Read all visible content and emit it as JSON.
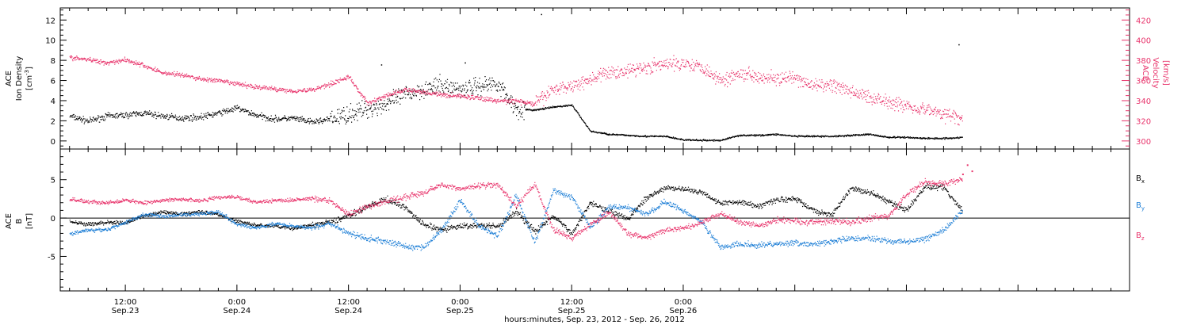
{
  "colors": {
    "black": "#000000",
    "pink": "#e8336b",
    "blue": "#1e7fd6"
  },
  "chart_data": [
    {
      "type": "scatter",
      "panel": "top",
      "left_axis": {
        "label_lines": [
          "ACE",
          "Ion Density"
        ],
        "unit": "[cm",
        "unit_sup": "-3",
        "unit_end": "]",
        "ylim": [
          -0.8,
          13.2
        ],
        "ticks": [
          0,
          2,
          4,
          6,
          8,
          10,
          12
        ]
      },
      "right_axis": {
        "label_lines": [
          "ACE",
          "Velocity"
        ],
        "unit": "[km/s]",
        "ylim": [
          292,
          432
        ],
        "ticks": [
          300,
          320,
          340,
          360,
          380,
          400,
          420
        ]
      },
      "series": [
        {
          "name": "Ion Density",
          "axis": "left",
          "color": "black",
          "x": [
            -6,
            -4,
            -2,
            0,
            2,
            4,
            6,
            8,
            10,
            12,
            14,
            16,
            18,
            20,
            22,
            24,
            26,
            28,
            30,
            32,
            34,
            36,
            38,
            40,
            42,
            44,
            46,
            48,
            50,
            52,
            54,
            56,
            58,
            60,
            62,
            64,
            66,
            68,
            70,
            72,
            74,
            76,
            78,
            80,
            82,
            84,
            86,
            88,
            90
          ],
          "y": [
            2.5,
            2.0,
            2.5,
            2.6,
            2.8,
            2.5,
            2.3,
            2.4,
            2.8,
            3.3,
            2.6,
            2.2,
            2.3,
            1.9,
            2.2,
            2.7,
            3.2,
            3.7,
            4.6,
            5.2,
            5.5,
            5.2,
            5.5,
            5.8,
            3.2,
            3.1,
            3.4,
            3.6,
            1.0,
            0.7,
            0.6,
            0.5,
            0.5,
            0.15,
            0.1,
            0.1,
            0.6,
            0.6,
            0.7,
            0.5,
            0.5,
            0.5,
            0.6,
            0.7,
            0.4,
            0.4,
            0.3,
            0.3,
            0.4
          ],
          "outliers": [
            [
              27.5,
              7.6
            ],
            [
              36.5,
              7.8
            ],
            [
              44.7,
              12.6
            ],
            [
              89.6,
              9.6
            ]
          ]
        },
        {
          "name": "Velocity",
          "axis": "right",
          "color": "pink",
          "x": [
            -6,
            -4,
            -2,
            0,
            2,
            4,
            6,
            8,
            10,
            12,
            14,
            16,
            18,
            20,
            22,
            24,
            26,
            28,
            30,
            32,
            34,
            36,
            38,
            40,
            42,
            44,
            46,
            48,
            50,
            52,
            54,
            56,
            58,
            60,
            62,
            64,
            66,
            68,
            70,
            72,
            74,
            76,
            78,
            80,
            82,
            84,
            86,
            88,
            90
          ],
          "y": [
            383,
            381,
            378,
            381,
            375,
            368,
            366,
            362,
            360,
            357,
            354,
            352,
            350,
            351,
            357,
            364,
            338,
            345,
            351,
            349,
            346,
            345,
            343,
            340,
            340,
            337,
            352,
            355,
            362,
            368,
            370,
            374,
            376,
            378,
            374,
            360,
            368,
            365,
            362,
            362,
            355,
            356,
            349,
            344,
            340,
            335,
            332,
            327,
            322
          ]
        }
      ]
    },
    {
      "type": "scatter",
      "panel": "bottom",
      "left_axis": {
        "label_lines": [
          "ACE",
          "B"
        ],
        "unit": "[nT]",
        "ylim": [
          -9.5,
          9
        ],
        "ticks": [
          -5,
          0,
          5
        ]
      },
      "legend": [
        "B",
        "B",
        "B"
      ],
      "legend_subscripts": [
        "x",
        "y",
        "z"
      ],
      "series": [
        {
          "name": "Bx",
          "color": "black",
          "x": [
            -6,
            -4,
            -2,
            0,
            2,
            4,
            6,
            8,
            10,
            12,
            14,
            16,
            18,
            20,
            22,
            24,
            26,
            28,
            30,
            32,
            34,
            36,
            38,
            40,
            42,
            44,
            46,
            48,
            50,
            52,
            54,
            56,
            58,
            60,
            62,
            64,
            66,
            68,
            70,
            72,
            74,
            76,
            78,
            80,
            82,
            84,
            86,
            88,
            90
          ],
          "y": [
            -0.4,
            -0.8,
            -0.5,
            -0.6,
            0.4,
            0.8,
            0.6,
            0.9,
            0.5,
            -0.4,
            -0.9,
            -1.0,
            -1.3,
            -0.9,
            -0.5,
            0.4,
            1.5,
            2.5,
            1.5,
            -0.8,
            -1.5,
            -1.0,
            -0.9,
            -1.1,
            0.9,
            -1.7,
            0.3,
            -2.0,
            2.1,
            1.0,
            0.0,
            2.6,
            4.0,
            3.8,
            3.4,
            2.0,
            2.2,
            1.6,
            2.4,
            2.6,
            1.0,
            0.5,
            3.9,
            3.4,
            2.2,
            1.1,
            4.2,
            4.0,
            1.0
          ]
        },
        {
          "name": "By",
          "color": "blue",
          "x": [
            -6,
            -4,
            -2,
            0,
            2,
            4,
            6,
            8,
            10,
            12,
            14,
            16,
            18,
            20,
            22,
            24,
            26,
            28,
            30,
            32,
            34,
            36,
            38,
            40,
            42,
            44,
            46,
            48,
            50,
            52,
            54,
            56,
            58,
            60,
            62,
            64,
            66,
            68,
            70,
            72,
            74,
            76,
            78,
            80,
            82,
            84,
            86,
            88,
            90
          ],
          "y": [
            -2.0,
            -1.5,
            -1.5,
            -0.5,
            0.5,
            0.3,
            0.5,
            0.6,
            0.9,
            -0.8,
            -1.2,
            -0.7,
            -1.0,
            -1.2,
            -0.7,
            -2.0,
            -2.6,
            -3.0,
            -3.6,
            -3.8,
            -1.5,
            2.4,
            -1.0,
            -2.3,
            3.0,
            -3.2,
            3.6,
            2.8,
            -1.2,
            1.5,
            1.4,
            0.5,
            2.2,
            1.0,
            -0.5,
            -3.8,
            -3.3,
            -3.5,
            -3.3,
            -3.2,
            -3.4,
            -3.0,
            -2.6,
            -2.6,
            -2.9,
            -3.1,
            -2.6,
            -1.5,
            1.0
          ]
        },
        {
          "name": "Bz",
          "color": "pink",
          "x": [
            -6,
            -4,
            -2,
            0,
            2,
            4,
            6,
            8,
            10,
            12,
            14,
            16,
            18,
            20,
            22,
            24,
            26,
            28,
            30,
            32,
            34,
            36,
            38,
            40,
            42,
            44,
            46,
            48,
            50,
            52,
            54,
            56,
            58,
            60,
            62,
            64,
            66,
            68,
            70,
            72,
            74,
            76,
            78,
            80,
            82,
            84,
            86,
            88,
            90
          ],
          "y": [
            2.5,
            2.2,
            2.0,
            2.4,
            2.0,
            2.4,
            2.5,
            2.3,
            2.8,
            2.8,
            2.1,
            2.3,
            2.4,
            2.6,
            2.3,
            0.5,
            1.5,
            2.2,
            2.8,
            3.3,
            4.5,
            3.8,
            4.3,
            4.4,
            1.5,
            4.5,
            -1.5,
            -2.5,
            -0.8,
            0.8,
            -2.0,
            -2.5,
            -1.5,
            -1.3,
            -0.5,
            0.6,
            -0.5,
            -1.0,
            -0.2,
            -0.3,
            -0.5,
            -0.3,
            -0.5,
            0.1,
            0.3,
            3.1,
            4.8,
            4.5,
            5.2
          ],
          "tail": [
            [
              90,
              5.8
            ],
            [
              90.5,
              7.0
            ],
            [
              91,
              6.2
            ]
          ]
        }
      ]
    }
  ],
  "x_axis": {
    "xlim": [
      -7,
      108
    ],
    "major_ticks": [
      {
        "x": 0,
        "time": "12:00",
        "date": "Sep.23"
      },
      {
        "x": 12,
        "time": "0:00",
        "date": "Sep.24"
      },
      {
        "x": 24,
        "time": "12:00",
        "date": "Sep.24"
      },
      {
        "x": 36,
        "time": "0:00",
        "date": "Sep.25"
      },
      {
        "x": 48,
        "time": "12:00",
        "date": "Sep.25"
      },
      {
        "x": 60,
        "time": "0:00",
        "date": "Sep.26"
      }
    ],
    "title": "hours:minutes, Sep. 23, 2012 - Sep. 26, 2012"
  }
}
